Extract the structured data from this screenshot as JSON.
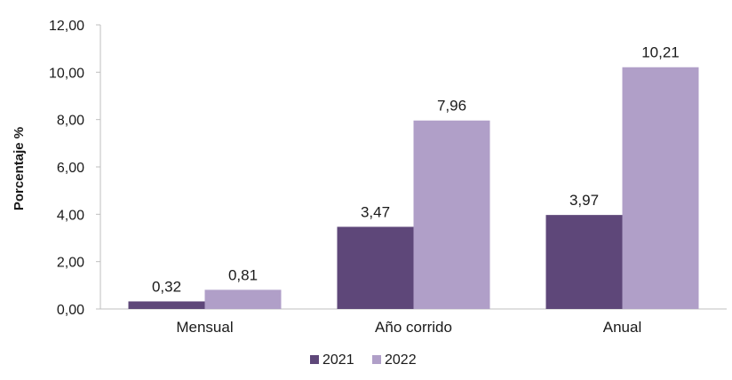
{
  "chart_data": {
    "type": "bar",
    "categories": [
      "Mensual",
      "Año corrido",
      "Anual"
    ],
    "series": [
      {
        "name": "2021",
        "values": [
          0.32,
          3.47,
          3.97
        ],
        "labels": [
          "0,32",
          "3,47",
          "3,97"
        ],
        "color": "#5e4779"
      },
      {
        "name": "2022",
        "values": [
          0.81,
          7.96,
          10.21
        ],
        "labels": [
          "0,81",
          "7,96",
          "10,21"
        ],
        "color": "#b09fc8"
      }
    ],
    "title": "",
    "xlabel": "",
    "ylabel": "Porcentaje %",
    "ylim": [
      0,
      12
    ],
    "yticks": [
      0,
      2,
      4,
      6,
      8,
      10,
      12
    ],
    "ytick_labels": [
      "0,00",
      "2,00",
      "4,00",
      "6,00",
      "8,00",
      "10,00",
      "12,00"
    ],
    "grid": false,
    "legend": "bottom-center"
  }
}
